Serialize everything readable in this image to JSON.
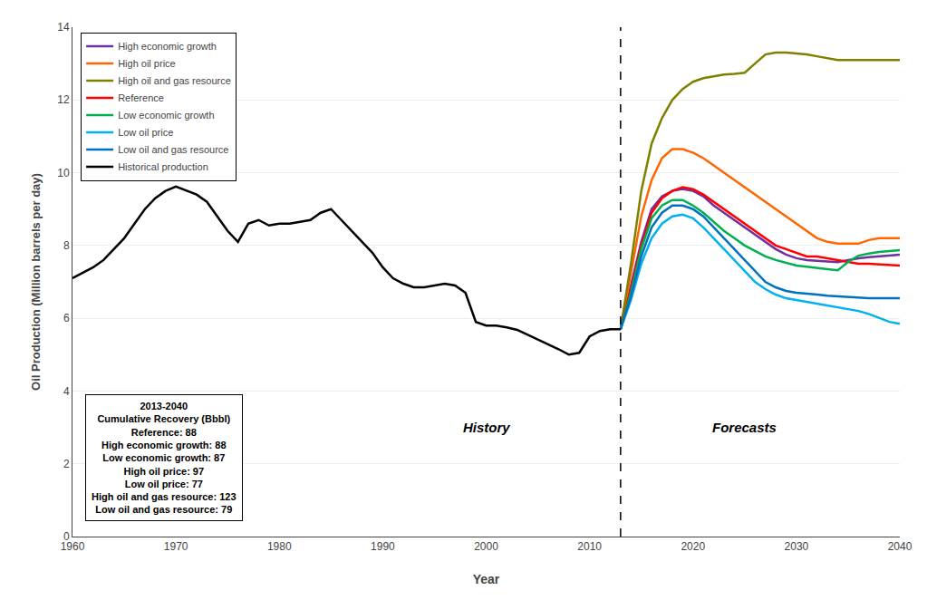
{
  "chart_data": {
    "type": "line",
    "title": "",
    "xlabel": "Year",
    "ylabel": "Oil Production (Million barrels per day)",
    "xlim": [
      1960,
      2040
    ],
    "ylim": [
      0,
      14
    ],
    "xticks": [
      1960,
      1970,
      1980,
      1990,
      2000,
      2010,
      2020,
      2030,
      2040
    ],
    "yticks": [
      0,
      2,
      4,
      6,
      8,
      10,
      12,
      14
    ],
    "grid": "y",
    "legend": "upper left",
    "vline": 2013,
    "annotations": [
      {
        "text": "History",
        "x": 2000,
        "y": 3.0
      },
      {
        "text": "Forecasts",
        "x": 2025,
        "y": 3.0
      }
    ],
    "textbox": [
      "2013-2040",
      "Cumulative Recovery (Bbbl)",
      "Reference: 88",
      "High economic growth: 88",
      "Low economic growth: 87",
      "High oil price: 97",
      "Low oil price: 77",
      "High oil and gas resource: 123",
      "Low oil and gas resource: 79"
    ],
    "series": [
      {
        "name": "High economic growth",
        "color": "#7030a0",
        "x": [
          2013,
          2014,
          2015,
          2016,
          2017,
          2018,
          2019,
          2020,
          2021,
          2022,
          2023,
          2024,
          2025,
          2026,
          2027,
          2028,
          2029,
          2030,
          2031,
          2032,
          2033,
          2034,
          2035,
          2036,
          2037,
          2038,
          2039,
          2040
        ],
        "values": [
          5.7,
          6.9,
          8.1,
          9.0,
          9.35,
          9.5,
          9.55,
          9.5,
          9.35,
          9.1,
          8.9,
          8.7,
          8.5,
          8.3,
          8.1,
          7.9,
          7.75,
          7.65,
          7.6,
          7.58,
          7.56,
          7.54,
          7.6,
          7.65,
          7.68,
          7.7,
          7.72,
          7.75
        ]
      },
      {
        "name": "High oil price",
        "color": "#ff6600",
        "x": [
          2013,
          2014,
          2015,
          2016,
          2017,
          2018,
          2019,
          2020,
          2021,
          2022,
          2023,
          2024,
          2025,
          2026,
          2027,
          2028,
          2029,
          2030,
          2031,
          2032,
          2033,
          2034,
          2035,
          2036,
          2037,
          2038,
          2039,
          2040
        ],
        "values": [
          5.7,
          7.2,
          8.8,
          9.8,
          10.4,
          10.65,
          10.65,
          10.55,
          10.4,
          10.2,
          10.0,
          9.8,
          9.6,
          9.4,
          9.2,
          9.0,
          8.8,
          8.6,
          8.4,
          8.2,
          8.1,
          8.05,
          8.05,
          8.05,
          8.15,
          8.2,
          8.2,
          8.2
        ]
      },
      {
        "name": "High oil and gas resource",
        "color": "#808000",
        "x": [
          2013,
          2014,
          2015,
          2016,
          2017,
          2018,
          2019,
          2020,
          2021,
          2022,
          2023,
          2024,
          2025,
          2026,
          2027,
          2028,
          2029,
          2030,
          2031,
          2032,
          2033,
          2034,
          2035,
          2036,
          2037,
          2038,
          2039,
          2040
        ],
        "values": [
          5.7,
          7.5,
          9.5,
          10.8,
          11.5,
          12.0,
          12.3,
          12.5,
          12.6,
          12.65,
          12.7,
          12.72,
          12.75,
          13.0,
          13.25,
          13.3,
          13.3,
          13.28,
          13.25,
          13.2,
          13.15,
          13.1,
          13.1,
          13.1,
          13.1,
          13.1,
          13.1,
          13.1
        ]
      },
      {
        "name": "Reference",
        "color": "#ff0000",
        "x": [
          2013,
          2014,
          2015,
          2016,
          2017,
          2018,
          2019,
          2020,
          2021,
          2022,
          2023,
          2024,
          2025,
          2026,
          2027,
          2028,
          2029,
          2030,
          2031,
          2032,
          2033,
          2034,
          2035,
          2036,
          2037,
          2038,
          2039,
          2040
        ],
        "values": [
          5.7,
          6.8,
          8.0,
          8.9,
          9.3,
          9.5,
          9.6,
          9.55,
          9.4,
          9.2,
          9.0,
          8.8,
          8.6,
          8.4,
          8.2,
          8.0,
          7.9,
          7.8,
          7.7,
          7.7,
          7.65,
          7.6,
          7.55,
          7.5,
          7.5,
          7.48,
          7.47,
          7.45
        ]
      },
      {
        "name": "Low economic growth",
        "color": "#00b050",
        "x": [
          2013,
          2014,
          2015,
          2016,
          2017,
          2018,
          2019,
          2020,
          2021,
          2022,
          2023,
          2024,
          2025,
          2026,
          2027,
          2028,
          2029,
          2030,
          2031,
          2032,
          2033,
          2034,
          2035,
          2036,
          2037,
          2038,
          2039,
          2040
        ],
        "values": [
          5.7,
          6.7,
          7.9,
          8.75,
          9.1,
          9.25,
          9.25,
          9.1,
          8.9,
          8.65,
          8.4,
          8.2,
          8.0,
          7.85,
          7.7,
          7.6,
          7.52,
          7.45,
          7.42,
          7.38,
          7.35,
          7.32,
          7.55,
          7.72,
          7.78,
          7.82,
          7.85,
          7.87
        ]
      },
      {
        "name": "Low oil price",
        "color": "#00b0f0",
        "x": [
          2013,
          2014,
          2015,
          2016,
          2017,
          2018,
          2019,
          2020,
          2021,
          2022,
          2023,
          2024,
          2025,
          2026,
          2027,
          2028,
          2029,
          2030,
          2031,
          2032,
          2033,
          2034,
          2035,
          2036,
          2037,
          2038,
          2039,
          2040
        ],
        "values": [
          5.7,
          6.5,
          7.5,
          8.2,
          8.6,
          8.8,
          8.85,
          8.75,
          8.5,
          8.2,
          7.9,
          7.6,
          7.3,
          7.0,
          6.8,
          6.65,
          6.55,
          6.5,
          6.45,
          6.4,
          6.35,
          6.3,
          6.25,
          6.2,
          6.12,
          6.0,
          5.9,
          5.85
        ]
      },
      {
        "name": "Low oil and gas resource",
        "color": "#0070c0",
        "x": [
          2013,
          2014,
          2015,
          2016,
          2017,
          2018,
          2019,
          2020,
          2021,
          2022,
          2023,
          2024,
          2025,
          2026,
          2027,
          2028,
          2029,
          2030,
          2031,
          2032,
          2033,
          2034,
          2035,
          2036,
          2037,
          2038,
          2039,
          2040
        ],
        "values": [
          5.7,
          6.6,
          7.7,
          8.5,
          8.9,
          9.1,
          9.1,
          9.0,
          8.8,
          8.5,
          8.2,
          7.9,
          7.6,
          7.3,
          7.0,
          6.85,
          6.75,
          6.7,
          6.68,
          6.65,
          6.62,
          6.6,
          6.58,
          6.56,
          6.55,
          6.55,
          6.55,
          6.55
        ]
      },
      {
        "name": "Historical production",
        "color": "#000000",
        "x": [
          1960,
          1961,
          1962,
          1963,
          1964,
          1965,
          1966,
          1967,
          1968,
          1969,
          1970,
          1971,
          1972,
          1973,
          1974,
          1975,
          1976,
          1977,
          1978,
          1979,
          1980,
          1981,
          1982,
          1983,
          1984,
          1985,
          1986,
          1987,
          1988,
          1989,
          1990,
          1991,
          1992,
          1993,
          1994,
          1995,
          1996,
          1997,
          1998,
          1999,
          2000,
          2001,
          2002,
          2003,
          2004,
          2005,
          2006,
          2007,
          2008,
          2009,
          2010,
          2011,
          2012,
          2013
        ],
        "values": [
          7.1,
          7.25,
          7.4,
          7.6,
          7.9,
          8.2,
          8.6,
          9.0,
          9.3,
          9.5,
          9.62,
          9.5,
          9.4,
          9.2,
          8.8,
          8.4,
          8.1,
          8.6,
          8.7,
          8.55,
          8.6,
          8.6,
          8.65,
          8.7,
          8.9,
          9.0,
          8.7,
          8.4,
          8.1,
          7.8,
          7.4,
          7.1,
          6.95,
          6.85,
          6.85,
          6.9,
          6.95,
          6.9,
          6.7,
          5.9,
          5.8,
          5.8,
          5.75,
          5.68,
          5.55,
          5.41,
          5.3,
          5.15,
          5.0,
          5.05,
          5.5,
          5.65,
          5.7,
          5.7
        ]
      }
    ]
  }
}
